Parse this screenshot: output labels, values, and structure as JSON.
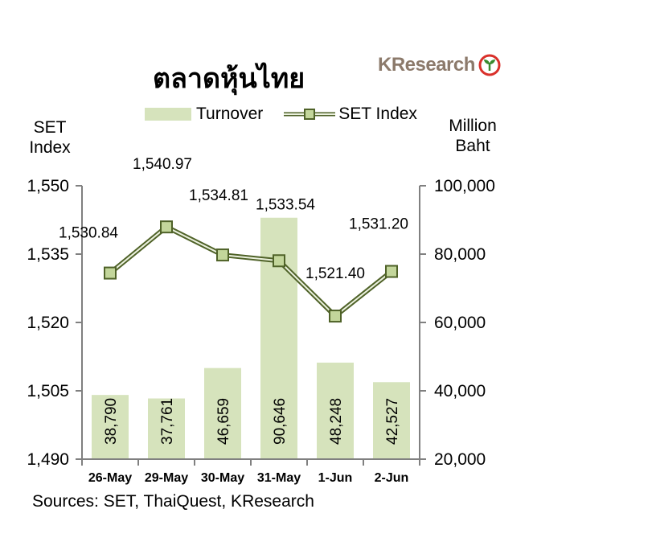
{
  "header": {
    "title": "ตลาดหุ้นไทย",
    "logo_text": "KResearch"
  },
  "axes": {
    "left_title_line1": "SET",
    "left_title_line2": "Index",
    "right_title_line1": "Million",
    "right_title_line2": "Baht"
  },
  "legend": {
    "bar_label": "Turnover",
    "line_label": "SET Index"
  },
  "footer": {
    "source": "Sources: SET, ThaiQuest, KResearch"
  },
  "colors": {
    "bar": "#d6e3bc",
    "line_dark": "#4f6228",
    "line_light": "#ebf1de",
    "marker_fill": "#c3d69b",
    "axis": "#808080",
    "logo_brown": "#8c7a6b",
    "logo_green": "#3a8a2f",
    "logo_red": "#d9302a"
  },
  "chart_data": {
    "type": "bar",
    "categories": [
      "26-May",
      "29-May",
      "30-May",
      "31-May",
      "1-Jun",
      "2-Jun"
    ],
    "series": [
      {
        "name": "Turnover",
        "type": "bar",
        "axis": "right",
        "values": [
          38790,
          37761,
          46659,
          90646,
          48248,
          42527
        ],
        "labels": [
          "38,790",
          "37,761",
          "46,659",
          "90,646",
          "48,248",
          "42,527"
        ]
      },
      {
        "name": "SET Index",
        "type": "line",
        "axis": "left",
        "values": [
          1530.84,
          1540.97,
          1534.81,
          1533.54,
          1521.4,
          1531.2
        ],
        "labels": [
          "1,530.84",
          "1,540.97",
          "1,534.81",
          "1,533.54",
          "1,521.40",
          "1,531.20"
        ]
      }
    ],
    "left_axis": {
      "ylim": [
        1490,
        1550
      ],
      "ticks": [
        1490,
        1505,
        1520,
        1535,
        1550
      ],
      "tick_labels": [
        "1,490",
        "1,505",
        "1,520",
        "1,535",
        "1,550"
      ]
    },
    "right_axis": {
      "ylim": [
        20000,
        100000
      ],
      "ticks": [
        20000,
        40000,
        60000,
        80000,
        100000
      ],
      "tick_labels": [
        "20,000",
        "40,000",
        "60,000",
        "80,000",
        "100,000"
      ]
    },
    "grid": false,
    "legend_position": "top"
  }
}
